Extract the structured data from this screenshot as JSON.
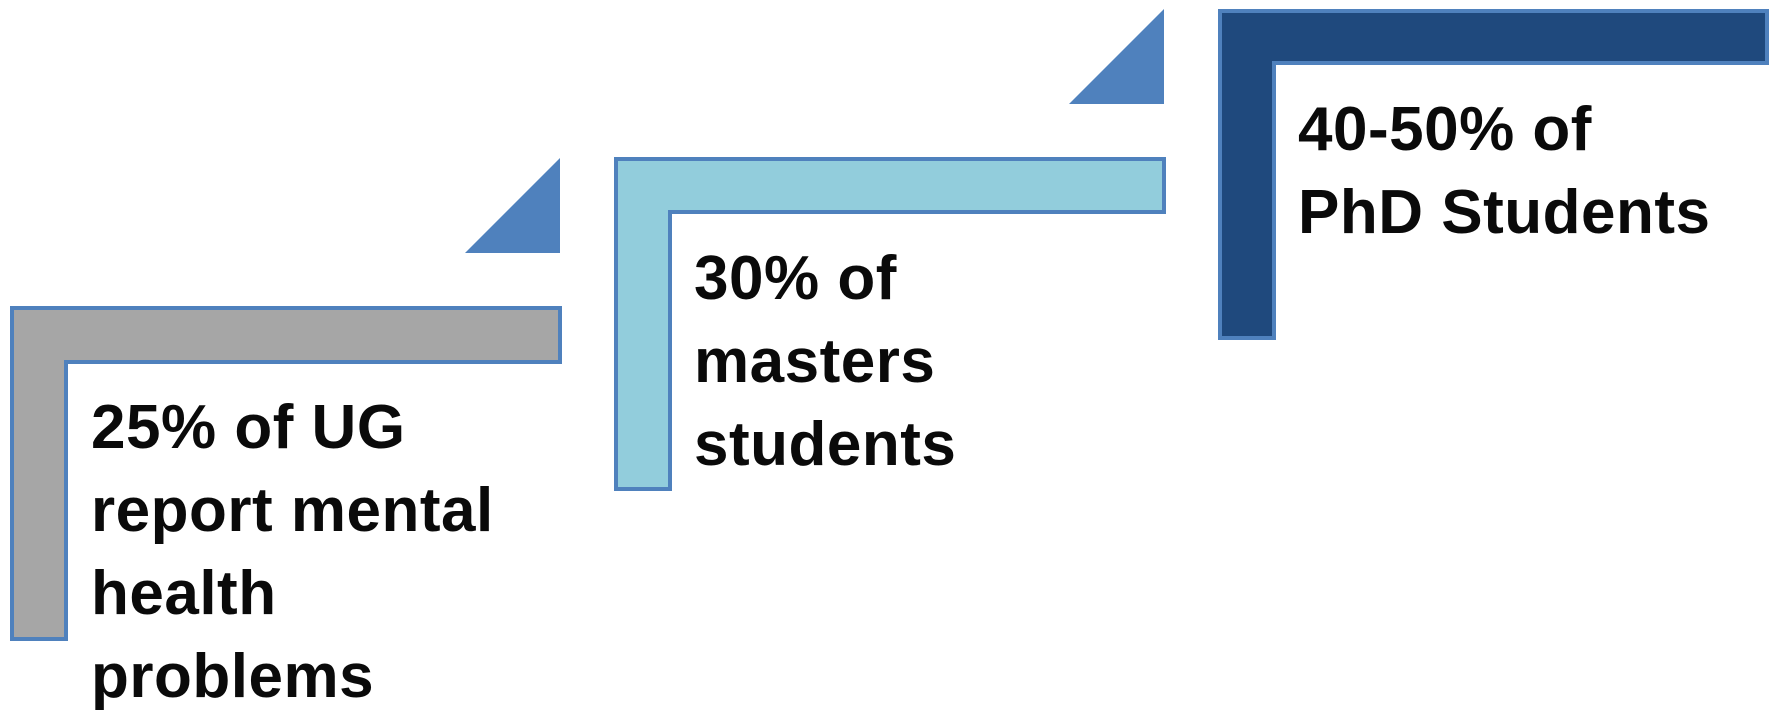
{
  "colors": {
    "background": "#ffffff",
    "outline": "#4f81bd",
    "text": "#0a0a0a",
    "arrow_triangle": "#4f81bd"
  },
  "steps": [
    {
      "id": "ug",
      "fill": "#a6a6a6",
      "lines": [
        "25% of UG",
        "report mental",
        "health",
        "problems"
      ]
    },
    {
      "id": "masters",
      "fill": "#92cddc",
      "lines": [
        "30% of",
        "masters",
        "students"
      ]
    },
    {
      "id": "phd",
      "fill": "#1f497d",
      "lines": [
        "40-50% of",
        "PhD Students"
      ]
    }
  ]
}
